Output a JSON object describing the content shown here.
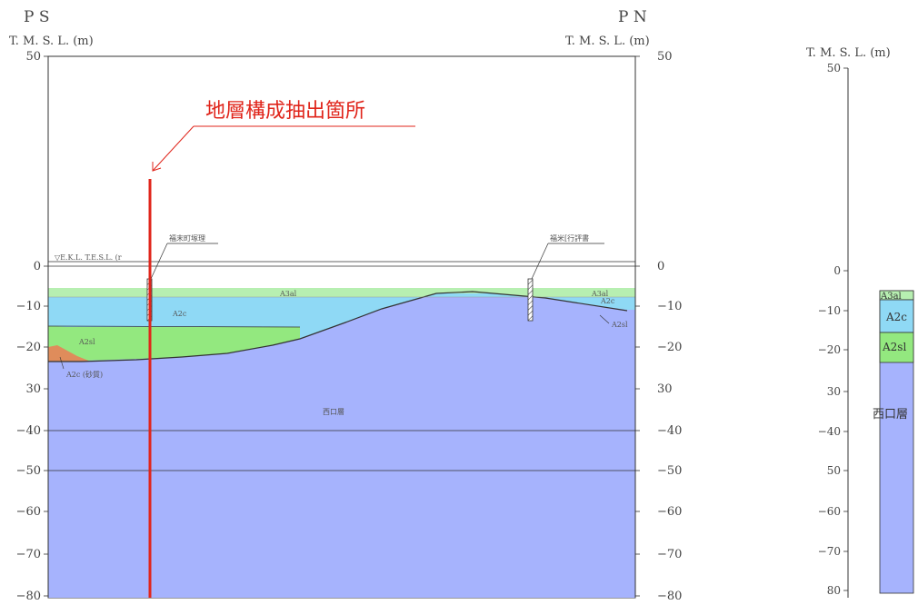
{
  "header": {
    "left_label": "P S",
    "right_label": "P N",
    "axis_unit_left": "T. M. S. L.  (m)",
    "axis_unit_right": "T. M. S. L.  (m)",
    "axis_unit_column": "T. M. S. L.  (m)"
  },
  "section": {
    "elevation_ticks_left": [
      "50",
      "0",
      "−10",
      "−20",
      "30",
      "−40",
      "−50",
      "−60",
      "−70",
      "−80"
    ],
    "elevation_ticks_right": [
      "50",
      "0",
      "−10",
      "−20",
      "30",
      "−40",
      "−50",
      "−60",
      "−70",
      "−80"
    ],
    "datum_label": "▽E.K.L. T.E.S.L. (r",
    "borehole_left_label": "福末町塚理",
    "borehole_right_label": "福米[行評書",
    "layer_labels": {
      "a3al_top": "A3al",
      "a3al_right": "A3al",
      "a2c_right_small": "A2c",
      "a2c_left": "A2c",
      "a2sl_left": "A2sl",
      "a2sl_right": "A2sl",
      "a2c_sandy": "A2c (砂質)",
      "bedrock": "西口層"
    },
    "callout_text": "地層構成抽出箇所"
  },
  "column": {
    "elevation_ticks": [
      "50",
      "0",
      "−10",
      "−20",
      "30",
      "−40",
      "50",
      "−60",
      "−70",
      "80"
    ],
    "layers": [
      "A3al",
      "A2c",
      "A2sl",
      "西口層"
    ]
  },
  "colors": {
    "a3al": "#b7efb1",
    "a2c": "#8fd9f5",
    "a2sl": "#93e87f",
    "bedrock": "#a6b3fd",
    "a2c_sandy": "#df8c5b",
    "extraction_line": "#e0251b"
  }
}
